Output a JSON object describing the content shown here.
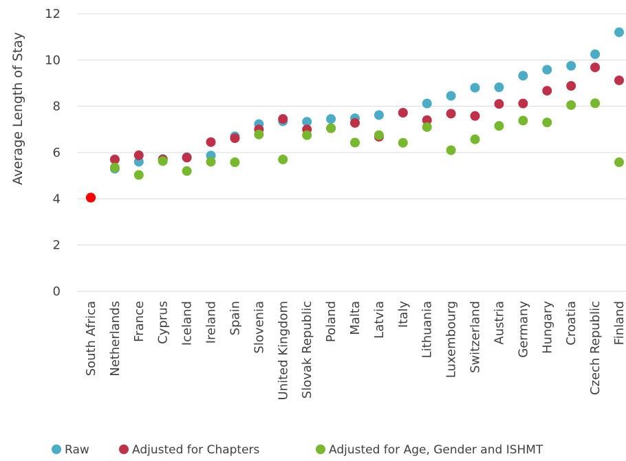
{
  "chart_data": {
    "type": "scatter",
    "title": "",
    "xlabel": "",
    "ylabel": "Average Length of Stay",
    "ylim": [
      0,
      12
    ],
    "yticks": [
      0,
      2,
      4,
      6,
      8,
      10,
      12
    ],
    "grid": true,
    "legend_position": "bottom",
    "categories": [
      "South Africa",
      "Netherlands",
      "France",
      "Cyprus",
      "Iceland",
      "Ireland",
      "Spain",
      "Slovenia",
      "United Kingdom",
      "Slovak Republic",
      "Poland",
      "Malta",
      "Latvia",
      "Italy",
      "Lithuania",
      "Luxembourg",
      "Switzerland",
      "Austria",
      "Germany",
      "Hungary",
      "Croatia",
      "Czech Republic",
      "Finland"
    ],
    "series": [
      {
        "name": "Raw",
        "color": "#4bacc6",
        "values": [
          4.05,
          5.3,
          5.6,
          5.72,
          5.8,
          5.87,
          6.7,
          7.23,
          7.35,
          7.33,
          7.45,
          7.48,
          7.62,
          7.72,
          8.12,
          8.45,
          8.8,
          8.82,
          9.32,
          9.58,
          9.75,
          10.25,
          11.2
        ]
      },
      {
        "name": "Adjusted for Chapters",
        "color": "#be3148",
        "values": [
          4.05,
          5.7,
          5.88,
          5.7,
          5.78,
          6.45,
          6.62,
          7.0,
          7.45,
          7.0,
          7.05,
          7.28,
          6.68,
          7.72,
          7.4,
          7.68,
          7.58,
          8.1,
          8.12,
          8.67,
          8.88,
          9.68,
          9.12
        ]
      },
      {
        "name": "Adjusted for Age, Gender and ISHMT",
        "color": "#77b82f",
        "values": [
          4.05,
          5.35,
          5.03,
          5.63,
          5.2,
          5.6,
          5.58,
          6.78,
          5.7,
          6.75,
          7.05,
          6.43,
          6.75,
          6.42,
          7.1,
          6.1,
          6.57,
          7.15,
          7.38,
          7.3,
          8.05,
          8.13,
          5.58
        ]
      }
    ],
    "highlight": {
      "category": "South Africa",
      "color": "#ff0000"
    }
  }
}
